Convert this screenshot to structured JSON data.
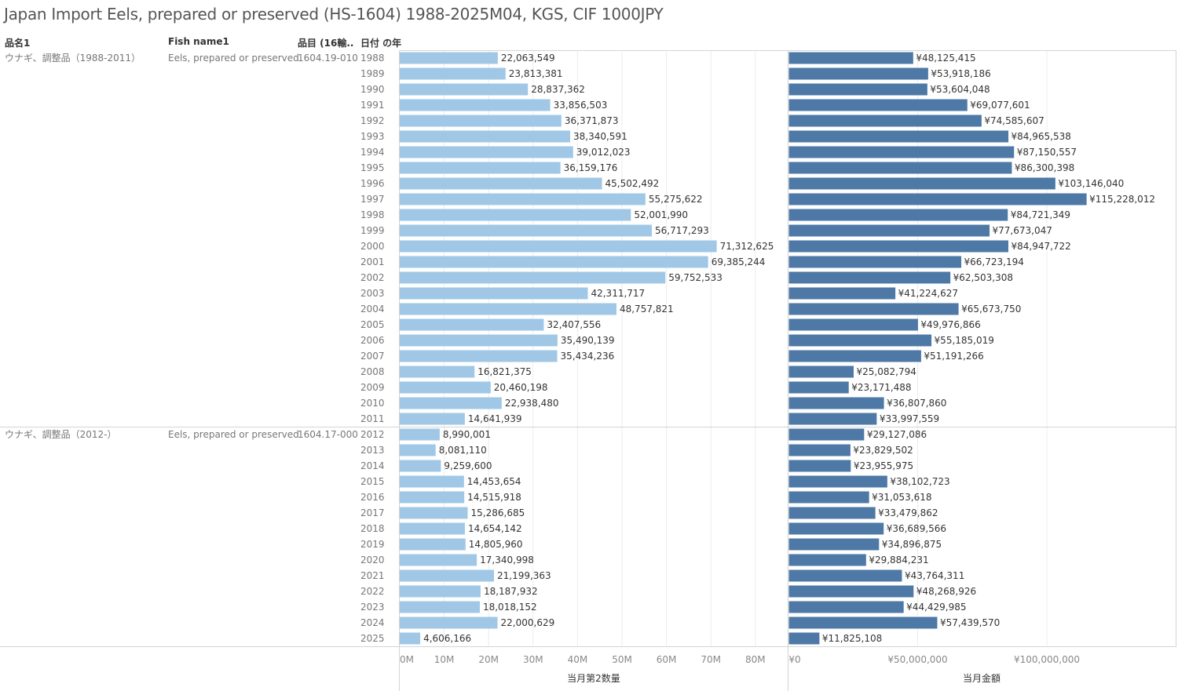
{
  "title": "Japan Import Eels, prepared or preserved (HS-1604) 1988-2025M04, KGS, CIF 1000JPY",
  "headers": {
    "col1": "品名1",
    "col2": "Fish name1",
    "col3": "品目 (16輸..",
    "col4": "日付 の年"
  },
  "groups": [
    {
      "name": "ウナギ、調整品（1988-2011）",
      "fish": "Eels, prepared or preserved",
      "code": "1604.19-010",
      "years": [
        "1988",
        "1989",
        "1990",
        "1991",
        "1992",
        "1993",
        "1994",
        "1995",
        "1996",
        "1997",
        "1998",
        "1999",
        "2000",
        "2001",
        "2002",
        "2003",
        "2004",
        "2005",
        "2006",
        "2007",
        "2008",
        "2009",
        "2010",
        "2011"
      ],
      "qty": [
        22063549,
        23813381,
        28837362,
        33856503,
        36371873,
        38340591,
        39012023,
        36159176,
        45502492,
        55275622,
        52001990,
        56717293,
        71312625,
        69385244,
        59752533,
        42311717,
        48757821,
        32407556,
        35490139,
        35434236,
        16821375,
        20460198,
        22938480,
        14641939
      ],
      "qty_labels": [
        "22,063,549",
        "23,813,381",
        "28,837,362",
        "33,856,503",
        "36,371,873",
        "38,340,591",
        "39,012,023",
        "36,159,176",
        "45,502,492",
        "55,275,622",
        "52,001,990",
        "56,717,293",
        "71,312,625",
        "69,385,244",
        "59,752,533",
        "42,311,717",
        "48,757,821",
        "32,407,556",
        "35,490,139",
        "35,434,236",
        "16,821,375",
        "20,460,198",
        "22,938,480",
        "14,641,939"
      ],
      "amt": [
        48125415,
        53918186,
        53604048,
        69077601,
        74585607,
        84965538,
        87150557,
        86300398,
        103146040,
        115228012,
        84721349,
        77673047,
        84947722,
        66723194,
        62503308,
        41224627,
        65673750,
        49976866,
        55185019,
        51191266,
        25082794,
        23171488,
        36807860,
        33997559
      ],
      "amt_labels": [
        "¥48,125,415",
        "¥53,918,186",
        "¥53,604,048",
        "¥69,077,601",
        "¥74,585,607",
        "¥84,965,538",
        "¥87,150,557",
        "¥86,300,398",
        "¥103,146,040",
        "¥115,228,012",
        "¥84,721,349",
        "¥77,673,047",
        "¥84,947,722",
        "¥66,723,194",
        "¥62,503,308",
        "¥41,224,627",
        "¥65,673,750",
        "¥49,976,866",
        "¥55,185,019",
        "¥51,191,266",
        "¥25,082,794",
        "¥23,171,488",
        "¥36,807,860",
        "¥33,997,559"
      ]
    },
    {
      "name": "ウナギ、調整品（2012-）",
      "fish": "Eels, prepared or preserved",
      "code": "1604.17-000",
      "years": [
        "2012",
        "2013",
        "2014",
        "2015",
        "2016",
        "2017",
        "2018",
        "2019",
        "2020",
        "2021",
        "2022",
        "2023",
        "2024",
        "2025"
      ],
      "qty": [
        8990001,
        8081110,
        9259600,
        14453654,
        14515918,
        15286685,
        14654142,
        14805960,
        17340998,
        21199363,
        18187932,
        18018152,
        22000629,
        4606166
      ],
      "qty_labels": [
        "8,990,001",
        "8,081,110",
        "9,259,600",
        "14,453,654",
        "14,515,918",
        "15,286,685",
        "14,654,142",
        "14,805,960",
        "17,340,998",
        "21,199,363",
        "18,187,932",
        "18,018,152",
        "22,000,629",
        "4,606,166"
      ],
      "amt": [
        29127086,
        23829502,
        23955975,
        38102723,
        31053618,
        33479862,
        36689566,
        34896875,
        29884231,
        43764311,
        48268926,
        44429985,
        57439570,
        11825108
      ],
      "amt_labels": [
        "¥29,127,086",
        "¥23,829,502",
        "¥23,955,975",
        "¥38,102,723",
        "¥31,053,618",
        "¥33,479,862",
        "¥36,689,566",
        "¥34,896,875",
        "¥29,884,231",
        "¥43,764,311",
        "¥48,268,926",
        "¥44,429,985",
        "¥57,439,570",
        "¥11,825,108"
      ]
    }
  ],
  "chart_data": [
    {
      "type": "bar",
      "orientation": "horizontal",
      "xlabel": "当月第2数量",
      "x_ticks": [
        "0M",
        "10M",
        "20M",
        "30M",
        "40M",
        "50M",
        "60M",
        "70M",
        "80M"
      ],
      "xlim": [
        0,
        87000000
      ],
      "color": "#a0c8e6"
    },
    {
      "type": "bar",
      "orientation": "horizontal",
      "xlabel": "当月金額",
      "x_ticks": [
        "¥0",
        "¥50,000,000",
        "¥100,000,000"
      ],
      "xlim": [
        0,
        148000000
      ],
      "color": "#4e79a7"
    }
  ]
}
